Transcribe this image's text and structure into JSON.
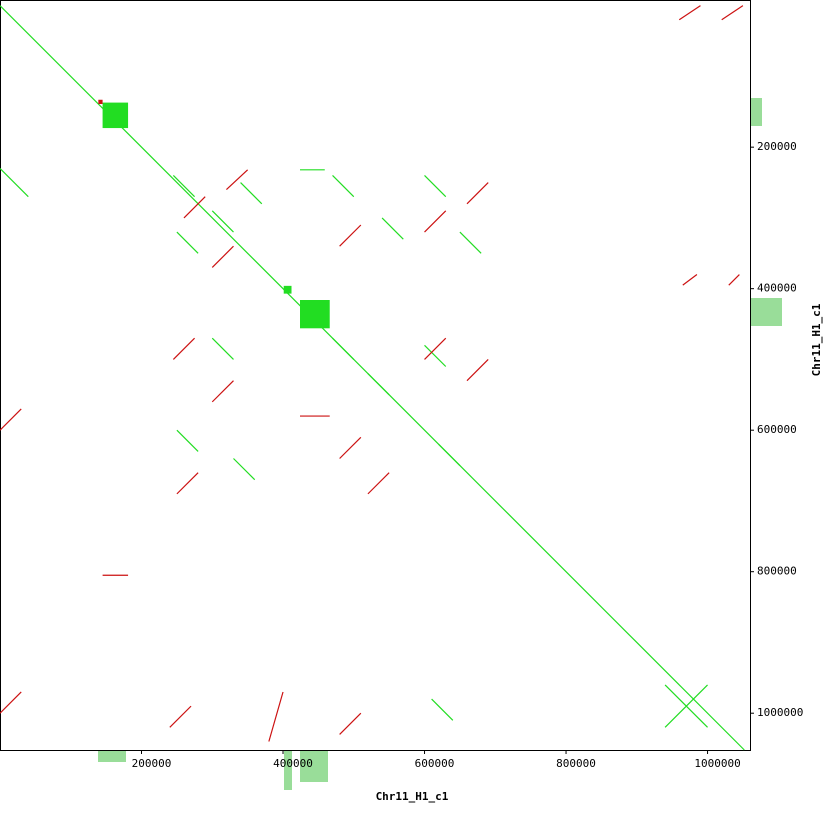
{
  "chart_data": {
    "type": "dotplot",
    "xlabel": "Chr11_H1_c1",
    "ylabel": "Chr11_H1_c1",
    "xlim": [
      0,
      1060000
    ],
    "ylim": [
      -8000,
      1052000
    ],
    "xticks": [
      200000,
      400000,
      600000,
      800000,
      1000000
    ],
    "yticks": [
      200000,
      400000,
      600000,
      800000,
      1000000
    ],
    "series": [
      {
        "color": "#22dd22",
        "segments": [
          [
            0,
            0,
            1052000,
            1052000
          ],
          [
            245000,
            240000,
            275000,
            270000
          ],
          [
            300000,
            290000,
            330000,
            320000
          ],
          [
            340000,
            250000,
            370000,
            280000
          ],
          [
            250000,
            320000,
            280000,
            350000
          ],
          [
            470000,
            240000,
            500000,
            270000
          ],
          [
            540000,
            300000,
            570000,
            330000
          ],
          [
            600000,
            240000,
            630000,
            270000
          ],
          [
            650000,
            320000,
            680000,
            350000
          ],
          [
            250000,
            600000,
            280000,
            630000
          ],
          [
            330000,
            640000,
            360000,
            670000
          ],
          [
            300000,
            470000,
            330000,
            500000
          ],
          [
            470000,
            470000,
            500000,
            500000
          ],
          [
            520000,
            520000,
            550000,
            550000
          ],
          [
            620000,
            620000,
            650000,
            650000
          ],
          [
            600000,
            480000,
            630000,
            510000
          ],
          [
            610000,
            980000,
            640000,
            1010000
          ],
          [
            940000,
            960000,
            1000000,
            1020000
          ],
          [
            1000000,
            960000,
            940000,
            1020000
          ],
          [
            0,
            230000,
            40000,
            270000
          ],
          [
            424000,
            232000,
            459000,
            232000
          ]
        ],
        "blocks": [
          [
            145000,
            137000,
            181000,
            173000
          ],
          [
            424000,
            416000,
            466000,
            456000
          ],
          [
            401000,
            396000,
            412000,
            407000
          ]
        ]
      },
      {
        "color": "#cc1111",
        "segments": [
          [
            260000,
            300000,
            290000,
            270000
          ],
          [
            320000,
            260000,
            350000,
            232000
          ],
          [
            300000,
            370000,
            330000,
            340000
          ],
          [
            480000,
            340000,
            510000,
            310000
          ],
          [
            600000,
            320000,
            630000,
            290000
          ],
          [
            660000,
            280000,
            690000,
            250000
          ],
          [
            245000,
            500000,
            275000,
            470000
          ],
          [
            300000,
            560000,
            330000,
            530000
          ],
          [
            250000,
            690000,
            280000,
            660000
          ],
          [
            600000,
            500000,
            630000,
            470000
          ],
          [
            660000,
            530000,
            690000,
            500000
          ],
          [
            480000,
            640000,
            510000,
            610000
          ],
          [
            520000,
            690000,
            550000,
            660000
          ],
          [
            240000,
            1020000,
            270000,
            990000
          ],
          [
            380000,
            1040000,
            400000,
            970000
          ],
          [
            480000,
            1030000,
            510000,
            1000000
          ],
          [
            960000,
            20000,
            990000,
            0
          ],
          [
            1020000,
            20000,
            1050000,
            0
          ],
          [
            965000,
            395000,
            985000,
            380000
          ],
          [
            1030000,
            395000,
            1045000,
            380000
          ],
          [
            0,
            600000,
            30000,
            570000
          ],
          [
            0,
            1000000,
            30000,
            970000
          ],
          [
            424000,
            580000,
            466000,
            580000
          ],
          [
            145000,
            805000,
            181000,
            805000
          ]
        ],
        "blocks": [
          [
            139000,
            133000,
            145000,
            139000
          ]
        ]
      }
    ]
  }
}
